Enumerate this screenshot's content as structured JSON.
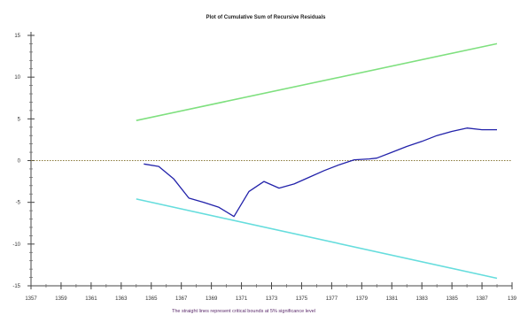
{
  "chart_data": {
    "type": "line",
    "title": "Plot of Cumulative Sum of Recursive Residuals",
    "note": "The straight lines represent critical bounds at 5% significance level",
    "xlabel": "",
    "ylabel": "",
    "xlim": [
      1357,
      1389
    ],
    "ylim": [
      -15,
      15
    ],
    "x_ticks": [
      "1357",
      "1359",
      "1361",
      "1363",
      "1365",
      "1367",
      "1369",
      "1371",
      "1373",
      "1375",
      "1377",
      "1379",
      "1381",
      "1383",
      "1385",
      "1387",
      "139"
    ],
    "y_ticks": [
      "15",
      "10",
      "5",
      "0",
      "-5",
      "-10",
      "-15"
    ],
    "grid": false,
    "series": [
      {
        "role": "cusum",
        "color": "#2222aa",
        "x": [
          1364.5,
          1365.5,
          1366.5,
          1367.5,
          1368.5,
          1369.5,
          1370.5,
          1371.5,
          1372.5,
          1373.5,
          1374.5,
          1375.5,
          1376.5,
          1377.5,
          1378.5,
          1379.5,
          1380,
          1381,
          1382,
          1383,
          1384,
          1385,
          1386,
          1387,
          1388
        ],
        "values": [
          -0.4,
          -0.7,
          -2.2,
          -4.5,
          -5.0,
          -5.6,
          -6.7,
          -3.7,
          -2.5,
          -3.3,
          -2.8,
          -2.0,
          -1.2,
          -0.5,
          0.1,
          0.2,
          0.3,
          1.0,
          1.7,
          2.3,
          3.0,
          3.5,
          3.9,
          3.7,
          3.7
        ]
      },
      {
        "role": "upper-bound",
        "color": "#7fe07f",
        "x": [
          1364,
          1388
        ],
        "values": [
          4.8,
          14.0
        ]
      },
      {
        "role": "lower-bound",
        "color": "#66dddd",
        "x": [
          1364,
          1388
        ],
        "values": [
          -4.6,
          -14.1
        ]
      }
    ],
    "zero_line": {
      "y": 0,
      "color": "#8a7a3a",
      "style": "dotted"
    }
  }
}
